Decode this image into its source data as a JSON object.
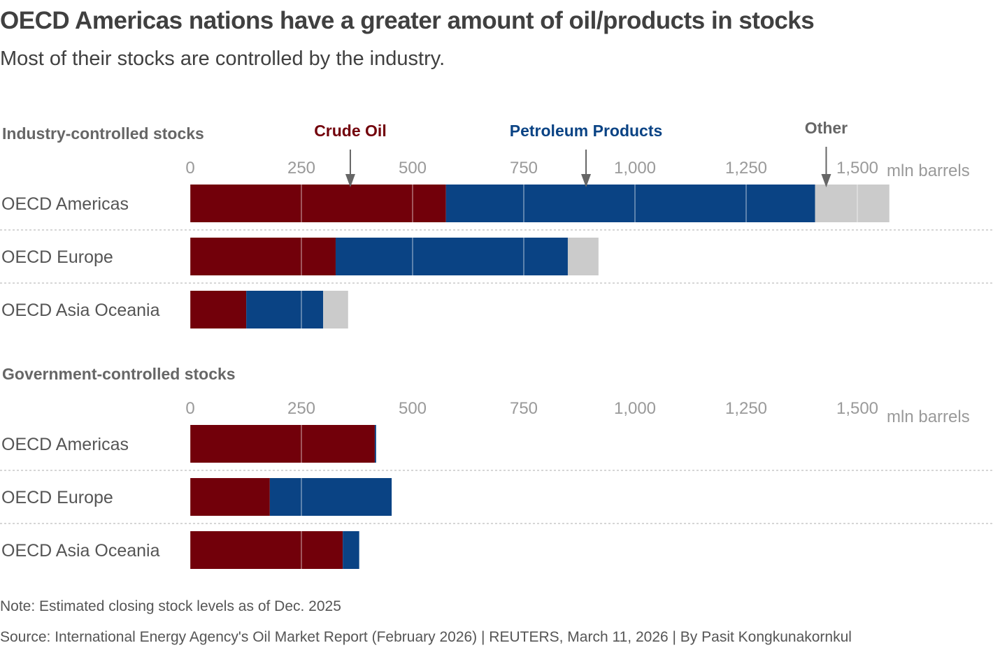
{
  "title": "OECD Americas nations have a greater amount of oil/products in stocks",
  "subtitle": "Most of their stocks are controlled by the industry.",
  "note": "Note: Estimated closing stock levels as of Dec. 2025",
  "source": "Source: International Energy Agency's Oil Market Report (February 2026) | REUTERS, March 11, 2026 | By Pasit Kongkunakornkul",
  "colors": {
    "crude": "#72000a",
    "products": "#0a4384",
    "other": "#cbcbcb",
    "legend_other": "#666666",
    "tick": "#9a9a9a",
    "category": "#555555"
  },
  "legend": [
    {
      "key": "crude",
      "label": "Crude Oil",
      "arrow_at_value": 360
    },
    {
      "key": "products",
      "label": "Petroleum Products",
      "arrow_at_value": 890
    },
    {
      "key": "other",
      "label": "Other",
      "arrow_at_value": 1430
    }
  ],
  "chart_data": [
    {
      "type": "bar",
      "orientation": "horizontal",
      "stacked": true,
      "title": "Industry-controlled stocks",
      "unit": "mln barrels",
      "xlim": [
        0,
        1500
      ],
      "ticks": [
        0,
        250,
        500,
        750,
        1000,
        1250,
        1500
      ],
      "tick_labels": [
        "0",
        "250",
        "500",
        "750",
        "1,000",
        "1,250",
        "1,500"
      ],
      "categories": [
        "OECD Americas",
        "OECD Europe",
        "OECD Asia Oceania"
      ],
      "series": [
        {
          "name": "Crude Oil",
          "key": "crude",
          "values": [
            575,
            327,
            126
          ]
        },
        {
          "name": "Petroleum Products",
          "key": "products",
          "values": [
            830,
            522,
            173
          ]
        },
        {
          "name": "Other",
          "key": "other",
          "values": [
            167,
            69,
            56
          ]
        }
      ]
    },
    {
      "type": "bar",
      "orientation": "horizontal",
      "stacked": true,
      "title": "Government-controlled stocks",
      "unit": "mln barrels",
      "xlim": [
        0,
        1500
      ],
      "ticks": [
        0,
        250,
        500,
        750,
        1000,
        1250,
        1500
      ],
      "tick_labels": [
        "0",
        "250",
        "500",
        "750",
        "1,000",
        "1,250",
        "1,500"
      ],
      "categories": [
        "OECD Americas",
        "OECD Europe",
        "OECD Asia Oceania"
      ],
      "series": [
        {
          "name": "Crude Oil",
          "key": "crude",
          "values": [
            415,
            179,
            343
          ]
        },
        {
          "name": "Petroleum Products",
          "key": "products",
          "values": [
            3,
            274,
            37
          ]
        },
        {
          "name": "Other",
          "key": "other",
          "values": [
            0,
            0,
            0
          ]
        }
      ]
    }
  ]
}
